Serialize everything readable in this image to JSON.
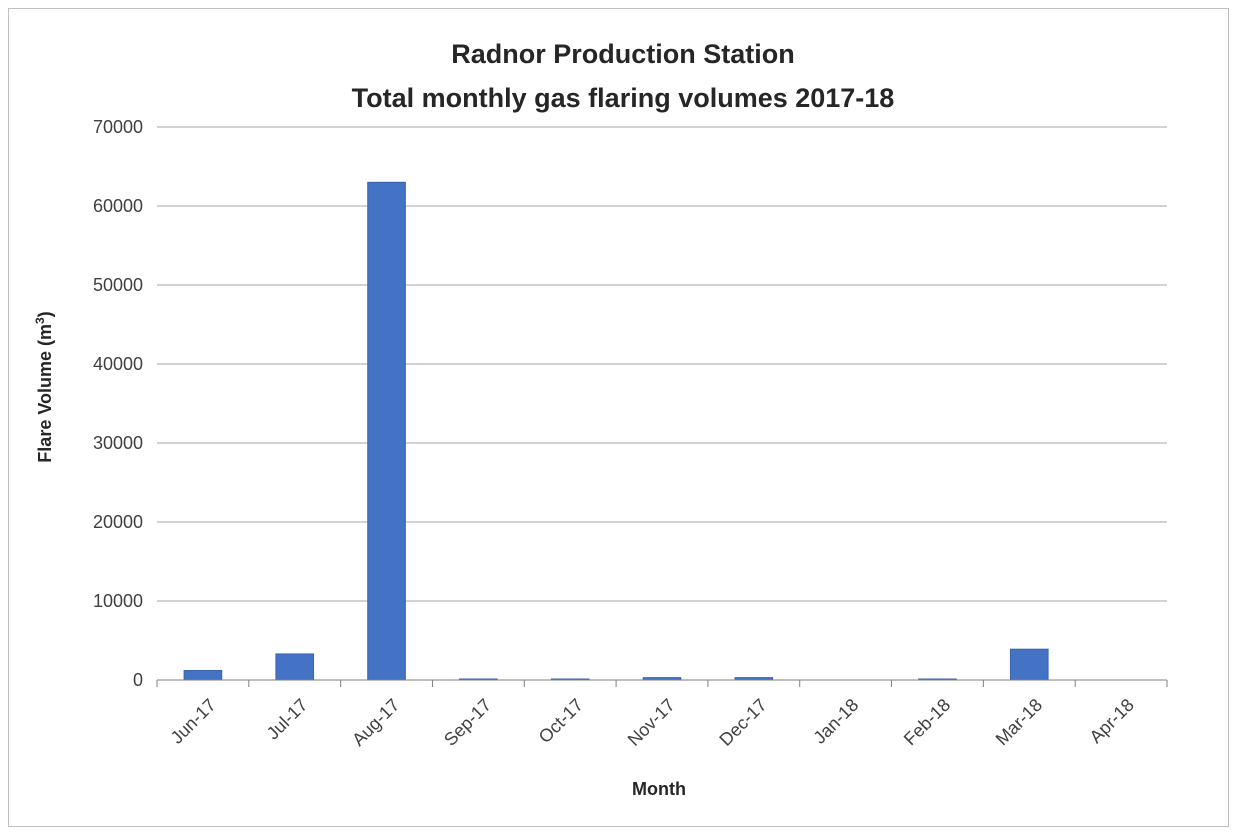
{
  "chart_data": {
    "type": "bar",
    "title": [
      "Radnor Production Station",
      "Total monthly gas flaring volumes 2017-18"
    ],
    "xlabel": "Month",
    "ylabel": "Flare Volume (m",
    "ylabel_sup": "3",
    "ylabel_close": ")",
    "categories": [
      "Jun-17",
      "Jul-17",
      "Aug-17",
      "Sep-17",
      "Oct-17",
      "Nov-17",
      "Dec-17",
      "Jan-18",
      "Feb-18",
      "Mar-18",
      "Apr-18"
    ],
    "values": [
      1200,
      3300,
      63000,
      100,
      100,
      300,
      300,
      0,
      100,
      3900,
      0
    ],
    "ylim": [
      0,
      70000
    ],
    "yticks": [
      "0",
      "10000",
      "20000",
      "30000",
      "40000",
      "50000",
      "60000",
      "70000"
    ],
    "grid": true,
    "legend": "none",
    "bar_color": "#4472c4"
  }
}
